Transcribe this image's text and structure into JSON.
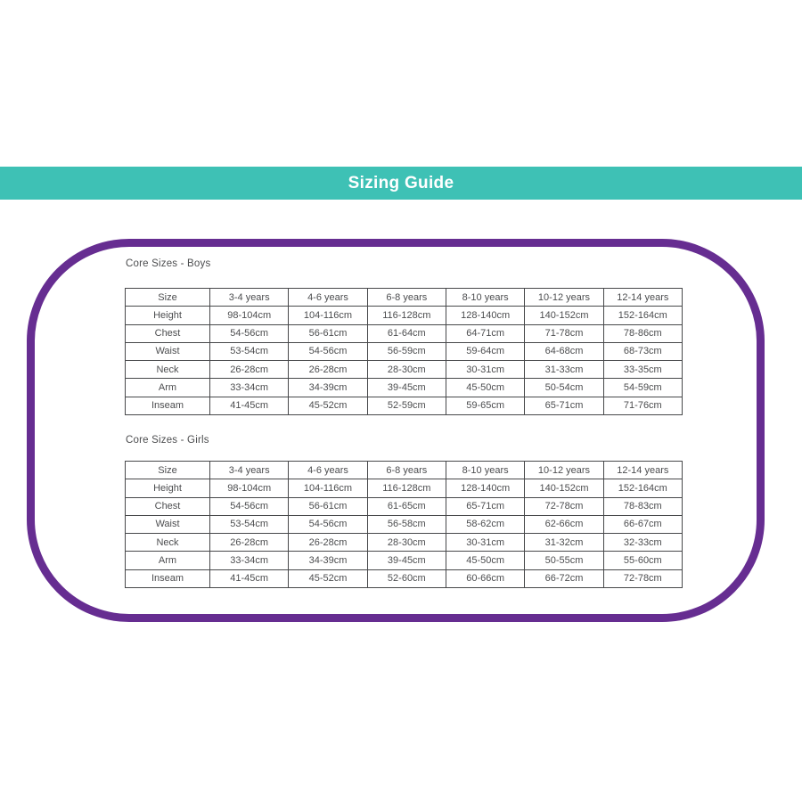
{
  "page": {
    "title": "Sizing Guide"
  },
  "colors": {
    "header_bar_teal": "#3EC1B5",
    "frame_purple": "#662D91",
    "table_text_gray": "#4C4D4F",
    "table_border_gray": "#47484A",
    "title_text": "#FFFFFF",
    "background": "#FFFFFF"
  },
  "sections": [
    {
      "title": "Core Sizes - Boys",
      "headers": [
        "Size",
        "3-4 years",
        "4-6 years",
        "6-8 years",
        "8-10 years",
        "10-12 years",
        "12-14 years"
      ],
      "rows": [
        {
          "label": "Height",
          "values": [
            "98-104cm",
            "104-116cm",
            "116-128cm",
            "128-140cm",
            "140-152cm",
            "152-164cm"
          ]
        },
        {
          "label": "Chest",
          "values": [
            "54-56cm",
            "56-61cm",
            "61-64cm",
            "64-71cm",
            "71-78cm",
            "78-86cm"
          ]
        },
        {
          "label": "Waist",
          "values": [
            "53-54cm",
            "54-56cm",
            "56-59cm",
            "59-64cm",
            "64-68cm",
            "68-73cm"
          ]
        },
        {
          "label": "Neck",
          "values": [
            "26-28cm",
            "26-28cm",
            "28-30cm",
            "30-31cm",
            "31-33cm",
            "33-35cm"
          ]
        },
        {
          "label": "Arm",
          "values": [
            "33-34cm",
            "34-39cm",
            "39-45cm",
            "45-50cm",
            "50-54cm",
            "54-59cm"
          ]
        },
        {
          "label": "Inseam",
          "values": [
            "41-45cm",
            "45-52cm",
            "52-59cm",
            "59-65cm",
            "65-71cm",
            "71-76cm"
          ]
        }
      ]
    },
    {
      "title": "Core Sizes - Girls",
      "headers": [
        "Size",
        "3-4 years",
        "4-6 years",
        "6-8 years",
        "8-10 years",
        "10-12 years",
        "12-14 years"
      ],
      "rows": [
        {
          "label": "Height",
          "values": [
            "98-104cm",
            "104-116cm",
            "116-128cm",
            "128-140cm",
            "140-152cm",
            "152-164cm"
          ]
        },
        {
          "label": "Chest",
          "values": [
            "54-56cm",
            "56-61cm",
            "61-65cm",
            "65-71cm",
            "72-78cm",
            "78-83cm"
          ]
        },
        {
          "label": "Waist",
          "values": [
            "53-54cm",
            "54-56cm",
            "56-58cm",
            "58-62cm",
            "62-66cm",
            "66-67cm"
          ]
        },
        {
          "label": "Neck",
          "values": [
            "26-28cm",
            "26-28cm",
            "28-30cm",
            "30-31cm",
            "31-32cm",
            "32-33cm"
          ]
        },
        {
          "label": "Arm",
          "values": [
            "33-34cm",
            "34-39cm",
            "39-45cm",
            "45-50cm",
            "50-55cm",
            "55-60cm"
          ]
        },
        {
          "label": "Inseam",
          "values": [
            "41-45cm",
            "45-52cm",
            "52-60cm",
            "60-66cm",
            "66-72cm",
            "72-78cm"
          ]
        }
      ]
    }
  ]
}
